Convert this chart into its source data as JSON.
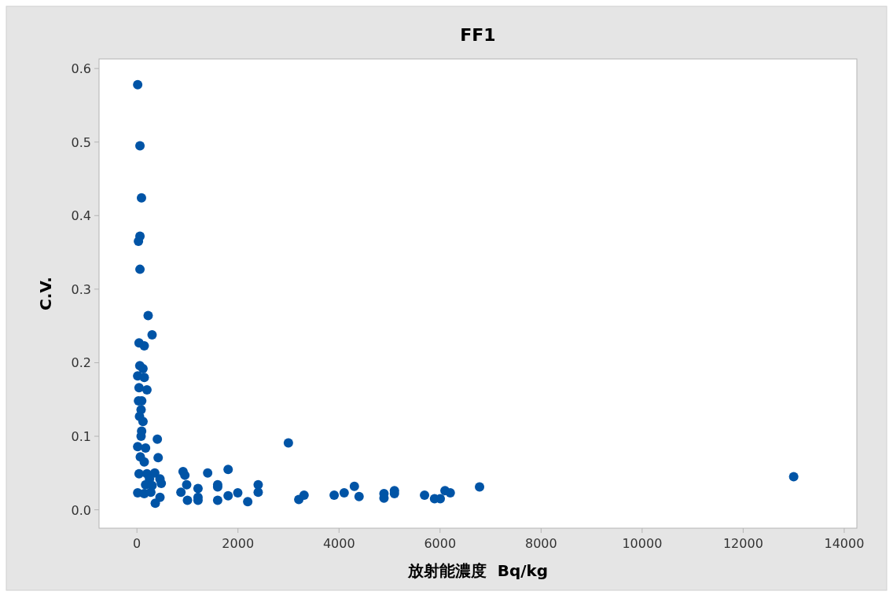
{
  "chart_data": {
    "type": "scatter",
    "title": "FF1",
    "xlabel": "放射能濃度  Bq/kg",
    "ylabel": "C.V.",
    "marker": "circle",
    "grid": false,
    "xlim": [
      -750,
      14250
    ],
    "ylim": [
      -0.025,
      0.613
    ],
    "xticks": [
      0,
      2000,
      4000,
      6000,
      8000,
      10000,
      12000,
      14000
    ],
    "yticks": [
      {
        "value": 0,
        "label": "0.0"
      },
      {
        "value": 0.1,
        "label": "0.1"
      },
      {
        "value": 0.2,
        "label": "0.2"
      },
      {
        "value": 0.3,
        "label": "0.3"
      },
      {
        "value": 0.4,
        "label": "0.4"
      },
      {
        "value": 0.5,
        "label": "0.5"
      },
      {
        "value": 0.6,
        "label": "0.6"
      }
    ],
    "series": [
      {
        "color": "#0054a6",
        "x": [
          15,
          60,
          90,
          60,
          30,
          60,
          222,
          300,
          42,
          145,
          57,
          120,
          15,
          145,
          42,
          198,
          31,
          95,
          82,
          51,
          120,
          93,
          82,
          404,
          15,
          171,
          67,
          420,
          145,
          42,
          198,
          353,
          249,
          456,
          482,
          171,
          300,
          15,
          145,
          275,
          456,
          363,
          913,
          949,
          985,
          871,
          1000,
          1209,
          1209,
          1209,
          1400,
          1805,
          1598,
          1598,
          1598,
          1805,
          1996,
          2193,
          2998,
          2400,
          2400,
          3204,
          3308,
          3904,
          4102,
          4304,
          4397,
          4890,
          4890,
          5097,
          5097,
          5693,
          5891,
          6004,
          6098,
          6202,
          6782,
          13000
        ],
        "values": [
          0.578,
          0.495,
          0.424,
          0.372,
          0.365,
          0.327,
          0.264,
          0.238,
          0.227,
          0.223,
          0.196,
          0.192,
          0.182,
          0.18,
          0.166,
          0.163,
          0.148,
          0.148,
          0.136,
          0.127,
          0.12,
          0.107,
          0.1,
          0.096,
          0.086,
          0.084,
          0.072,
          0.071,
          0.065,
          0.049,
          0.049,
          0.05,
          0.042,
          0.042,
          0.036,
          0.034,
          0.033,
          0.023,
          0.022,
          0.024,
          0.017,
          0.009,
          0.052,
          0.047,
          0.034,
          0.024,
          0.013,
          0.029,
          0.017,
          0.013,
          0.05,
          0.055,
          0.034,
          0.031,
          0.013,
          0.019,
          0.023,
          0.011,
          0.091,
          0.034,
          0.024,
          0.014,
          0.02,
          0.02,
          0.023,
          0.032,
          0.018,
          0.022,
          0.016,
          0.026,
          0.022,
          0.02,
          0.015,
          0.015,
          0.026,
          0.023,
          0.031,
          0.045
        ]
      }
    ]
  }
}
